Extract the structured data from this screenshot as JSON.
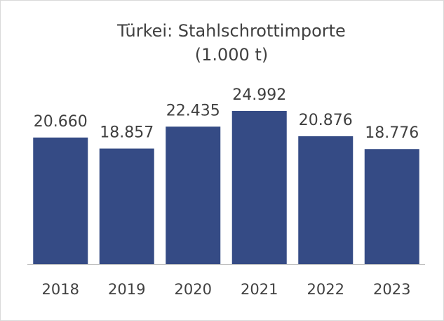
{
  "chart_data": {
    "type": "bar",
    "title": "Türkei: Stahlschrottimporte",
    "subtitle": "(1.000 t)",
    "categories": [
      "2018",
      "2019",
      "2020",
      "2021",
      "2022",
      "2023"
    ],
    "values": [
      20660,
      18857,
      22435,
      24992,
      20876,
      18776
    ],
    "value_labels": [
      "20.660",
      "18.857",
      "22.435",
      "24.992",
      "20.876",
      "18.776"
    ],
    "color": "#354b85"
  }
}
